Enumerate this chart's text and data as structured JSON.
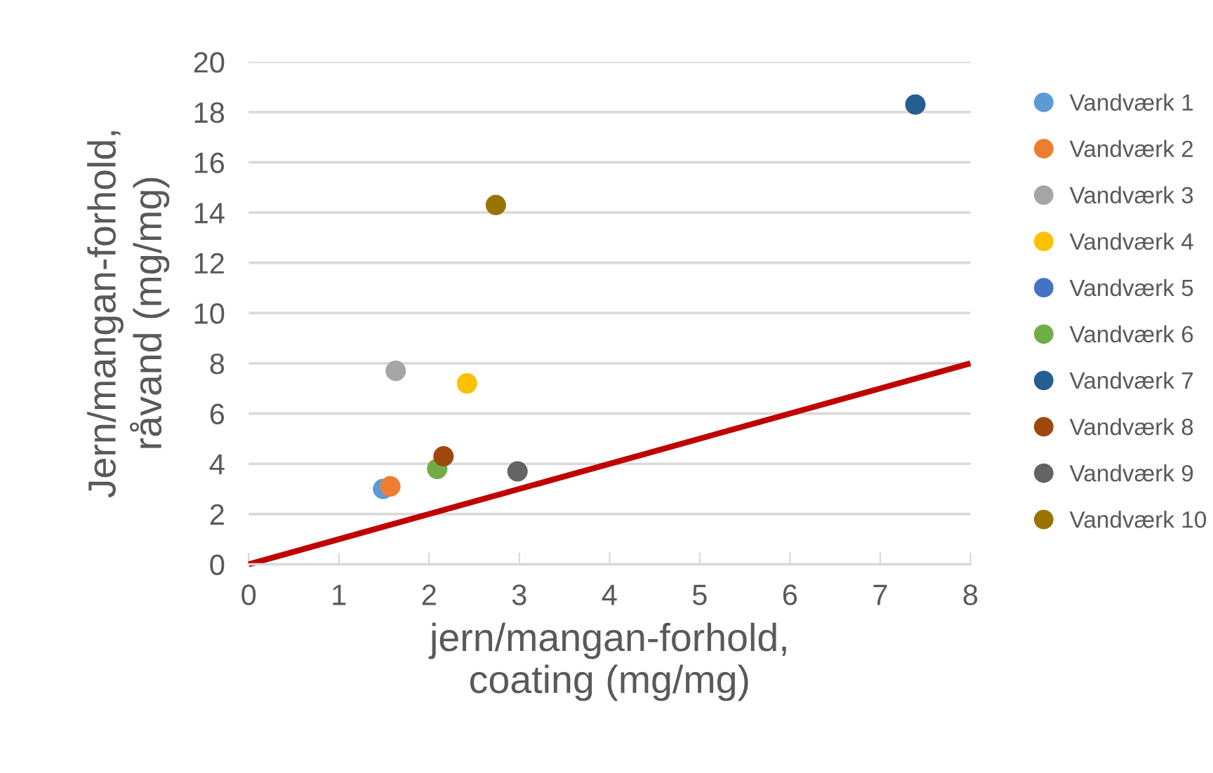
{
  "chart_data": {
    "type": "scatter",
    "xlabel": "jern/mangan-forhold,\ncoating (mg/mg)",
    "ylabel": "Jern/mangan-forhold,\nråvand (mg/mg)",
    "xlim": [
      0,
      8
    ],
    "xticks": [
      0,
      1,
      2,
      3,
      4,
      5,
      6,
      7,
      8
    ],
    "ylim": [
      0,
      20
    ],
    "yticks": [
      0,
      2,
      4,
      6,
      8,
      10,
      12,
      14,
      16,
      18,
      20
    ],
    "grid": "y",
    "legend": "right",
    "marker": "circle",
    "series": [
      {
        "type": "line",
        "marker": "none",
        "color": "#c00000",
        "x": [
          0,
          8
        ],
        "values": [
          0,
          8
        ]
      },
      {
        "name": "Vandværk 1",
        "color": "#5b9bd5",
        "x": [
          1.49
        ],
        "values": [
          3.0
        ]
      },
      {
        "name": "Vandværk 2",
        "color": "#ed7d31",
        "x": [
          1.57
        ],
        "values": [
          3.1
        ]
      },
      {
        "name": "Vandværk 3",
        "color": "#a5a5a5",
        "x": [
          1.63
        ],
        "values": [
          7.7
        ]
      },
      {
        "name": "Vandværk 4",
        "color": "#ffc000",
        "x": [
          2.42
        ],
        "values": [
          7.2
        ]
      },
      {
        "name": "Vandværk 5",
        "color": "#4472c4",
        "x": [
          null
        ],
        "values": [
          null
        ]
      },
      {
        "name": "Vandværk 6",
        "color": "#70ad47",
        "x": [
          2.09
        ],
        "values": [
          3.8
        ]
      },
      {
        "name": "Vandværk 7",
        "color": "#255e91",
        "x": [
          7.39
        ],
        "values": [
          18.3
        ]
      },
      {
        "name": "Vandværk 8",
        "color": "#9e480e",
        "x": [
          2.16
        ],
        "values": [
          4.3
        ]
      },
      {
        "name": "Vandværk 9",
        "color": "#636363",
        "x": [
          2.98
        ],
        "values": [
          3.7
        ]
      },
      {
        "name": "Vandværk 10",
        "color": "#997300",
        "x": [
          2.74
        ],
        "values": [
          14.3
        ]
      }
    ]
  }
}
